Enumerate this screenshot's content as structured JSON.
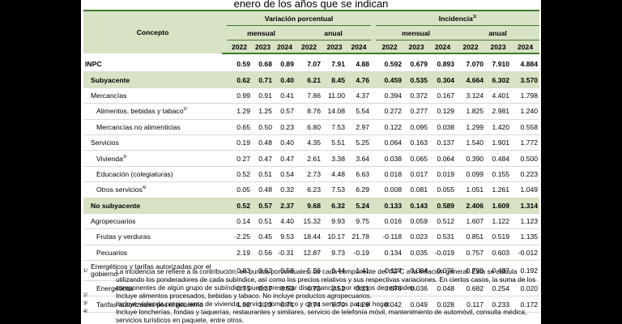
{
  "title": "enero de los años que se indican",
  "header": {
    "concepto": "Concepto",
    "variacion": "Variación porcentual",
    "incidencia": "Incidencia",
    "incidencia_sup": "1/",
    "mensual": "mensual",
    "anual": "anual",
    "years": [
      "2022",
      "2023",
      "2024"
    ]
  },
  "rows": [
    {
      "label": "INPC",
      "sup": "",
      "indent": 0,
      "style": "bold",
      "values": [
        "0.59",
        "0.68",
        "0.89",
        "7.07",
        "7.91",
        "4.88",
        "0.592",
        "0.679",
        "0.893",
        "7.070",
        "7.910",
        "4.884"
      ]
    },
    {
      "label": "Subyacente",
      "sup": "",
      "indent": 1,
      "style": "green",
      "values": [
        "0.62",
        "0.71",
        "0.40",
        "6.21",
        "8.45",
        "4.76",
        "0.459",
        "0.535",
        "0.304",
        "4.664",
        "6.302",
        "3.570"
      ]
    },
    {
      "label": "Mercancías",
      "sup": "",
      "indent": 1,
      "style": "",
      "values": [
        "0.99",
        "0.91",
        "0.41",
        "7.86",
        "11.00",
        "4.37",
        "0.394",
        "0.372",
        "0.167",
        "3.124",
        "4.401",
        "1.798"
      ]
    },
    {
      "label": "Alimentos, bebidas y tabaco",
      "sup": "2/",
      "indent": 2,
      "style": "",
      "values": [
        "1.29",
        "1.25",
        "0.57",
        "8.76",
        "14.08",
        "5.54",
        "0.272",
        "0.277",
        "0.129",
        "1.825",
        "2.981",
        "1.240"
      ]
    },
    {
      "label": "Mercancías no alimenticias",
      "sup": "",
      "indent": 2,
      "style": "",
      "values": [
        "0.65",
        "0.50",
        "0.23",
        "6.80",
        "7.53",
        "2.97",
        "0.122",
        "0.095",
        "0.038",
        "1.299",
        "1.420",
        "0.558"
      ]
    },
    {
      "label": "Servicios",
      "sup": "",
      "indent": 1,
      "style": "",
      "values": [
        "0.19",
        "0.48",
        "0.40",
        "4.35",
        "5.51",
        "5.25",
        "0.064",
        "0.163",
        "0.137",
        "1.540",
        "1.901",
        "1.772"
      ]
    },
    {
      "label": "Vivienda",
      "sup": "3/",
      "indent": 2,
      "style": "",
      "values": [
        "0.27",
        "0.47",
        "0.47",
        "2.61",
        "3.38",
        "3.64",
        "0.038",
        "0.065",
        "0.064",
        "0.390",
        "0.484",
        "0.500"
      ]
    },
    {
      "label": "Educación (colegiaturas)",
      "sup": "",
      "indent": 2,
      "style": "",
      "values": [
        "0.52",
        "0.51",
        "0.54",
        "2.73",
        "4.48",
        "6.63",
        "0.018",
        "0.017",
        "0.019",
        "0.099",
        "0.155",
        "0.223"
      ]
    },
    {
      "label": "Otros servicios",
      "sup": "4/",
      "indent": 2,
      "style": "",
      "values": [
        "0.05",
        "0.48",
        "0.32",
        "6.23",
        "7.53",
        "6.29",
        "0.008",
        "0.081",
        "0.055",
        "1.051",
        "1.261",
        "1.049"
      ]
    },
    {
      "label": "No subyacente",
      "sup": "",
      "indent": 1,
      "style": "green",
      "values": [
        "0.52",
        "0.57",
        "2.37",
        "9.68",
        "6.32",
        "5.24",
        "0.133",
        "0.143",
        "0.589",
        "2.406",
        "1.609",
        "1.314"
      ]
    },
    {
      "label": "Agropecuarios",
      "sup": "",
      "indent": 1,
      "style": "",
      "values": [
        "0.14",
        "0.51",
        "4.40",
        "15.32",
        "9.93",
        "9.75",
        "0.016",
        "0.059",
        "0.512",
        "1.607",
        "1.122",
        "1.123"
      ]
    },
    {
      "label": "Frutas y verduras",
      "sup": "",
      "indent": 2,
      "style": "",
      "values": [
        "-2.25",
        "0.45",
        "9.53",
        "18.44",
        "10.17",
        "21.78",
        "-0.118",
        "0.023",
        "0.531",
        "0.851",
        "0.519",
        "1.135"
      ]
    },
    {
      "label": "Pecuarios",
      "sup": "",
      "indent": 2,
      "style": "",
      "values": [
        "2.19",
        "0.56",
        "-0.31",
        "12.87",
        "9.73",
        "-0.19",
        "0.134",
        "0.035",
        "-0.019",
        "0.757",
        "0.603",
        "-0.012"
      ]
    },
    {
      "label": "Energéticos y tarifas autorizadas por el gobierno",
      "sup": "",
      "indent": 1,
      "style": "tall",
      "values": [
        "0.83",
        "0.62",
        "0.58",
        "5.56",
        "3.44",
        "1.41",
        "0.117",
        "0.084",
        "0.076",
        "0.798",
        "0.487",
        "0.192"
      ]
    },
    {
      "label": "Energéticos",
      "sup": "",
      "indent": 2,
      "style": "",
      "values": [
        "0.75",
        "0.37",
        "0.53",
        "6.75",
        "2.52",
        "0.21",
        "0.076",
        "0.036",
        "0.048",
        "0.682",
        "0.254",
        "0.020"
      ]
    },
    {
      "label": "Tarifas autorizadas por el gobierno",
      "sup": "",
      "indent": 2,
      "style": "",
      "values": [
        "1.02",
        "1.23",
        "0.71",
        "2.74",
        "5.70",
        "4.29",
        "0.042",
        "0.049",
        "0.028",
        "0.117",
        "0.233",
        "0.172"
      ]
    }
  ],
  "notes": [
    {
      "mark": "1/",
      "text": "La incidencia se refiere a la contribución, en puntos porcentuales, de cada componente del INPC a la inflación general. Esta se calcula utilizando los ponderadores de cada subíndice, así como los precios relativos y sus respectivas variaciones. En ciertos casos, la suma de los componentes de algún grupo de subíndices puede presentar discrepancias por efectos de redondeo."
    },
    {
      "mark": "2/",
      "text": "Incluye alimentos procesados, bebidas y tabaco. No incluye productos agropecuarios."
    },
    {
      "mark": "3/",
      "text": "Incluye vivienda propia, renta de vivienda, servicio doméstico y otros servicios para el hogar."
    },
    {
      "mark": "4/",
      "text": "Incluye loncherías, fondas y taquerías, restaurantes y similares, servicio de telefonía móvil, mantenimiento de automóvil, consulta médica, servicios turísticos en paquete, entre otros."
    }
  ]
}
